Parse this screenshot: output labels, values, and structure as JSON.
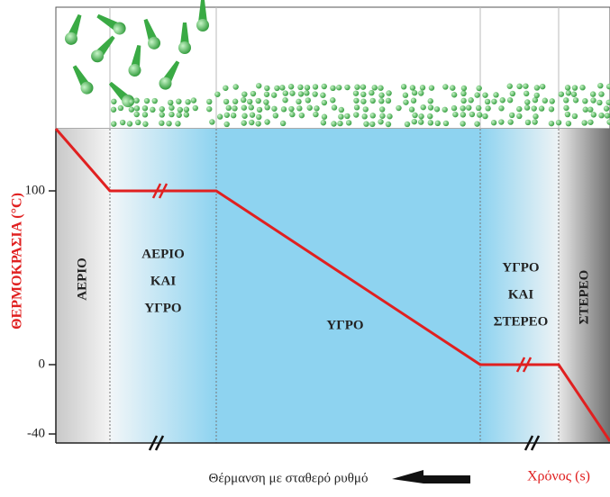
{
  "y_axis": {
    "label": "ΘΕΡΜΟΚΡΑΣΙΑ (°C)",
    "ticks": [
      "100",
      "0",
      "-40"
    ]
  },
  "phases": [
    {
      "lines": [
        "ΑΕΡΙΟ"
      ]
    },
    {
      "lines": [
        "ΑΕΡΙΟ",
        "ΚΑΙ",
        "ΥΓΡΟ"
      ]
    },
    {
      "lines": [
        "ΥΓΡΟ"
      ]
    },
    {
      "lines": [
        "ΥΓΡΟ",
        "ΚΑΙ",
        "ΣΤΕΡΕΟ"
      ]
    },
    {
      "lines": [
        "ΣΤΕΡΕΟ"
      ]
    }
  ],
  "footer": {
    "caption": "Θέρμανση με σταθερό ρυθμό",
    "x_axis_label": "Χρόνος (s)"
  }
}
